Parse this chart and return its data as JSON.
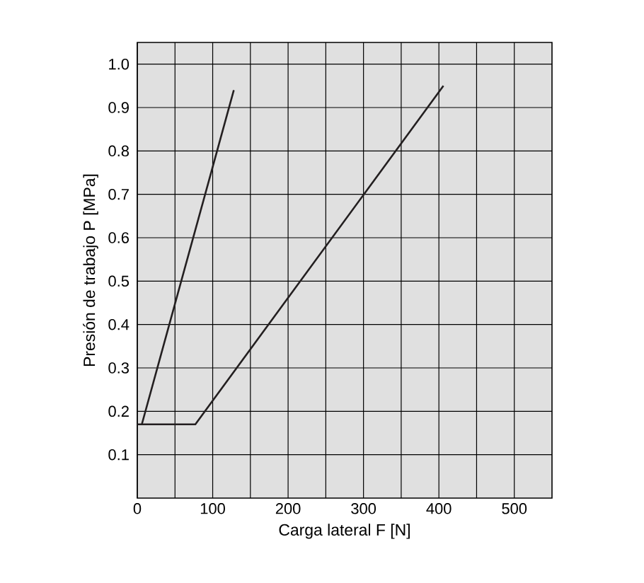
{
  "chart_data": {
    "type": "line",
    "xlabel": "Carga lateral F [N]",
    "ylabel": "Presión de trabajo  P [MPa]",
    "series": [
      {
        "color": "#231f20",
        "x": [
          6,
          128
        ],
        "values": [
          0.17,
          0.94
        ]
      },
      {
        "color": "#231f20",
        "x": [
          0,
          77,
          406
        ],
        "values": [
          0.17,
          0.17,
          0.95
        ]
      }
    ],
    "xlim": [
      0,
      550
    ],
    "ylim": [
      0,
      1.05
    ],
    "xticks": [
      0,
      {
        "value": 50,
        "label": null
      },
      100,
      {
        "value": 150,
        "label": null
      },
      200,
      {
        "value": 250,
        "label": null
      },
      300,
      {
        "value": 350,
        "label": null
      },
      400,
      {
        "value": 450,
        "label": null
      },
      500
    ],
    "yticks": [
      0.1,
      0.2,
      0.3,
      0.4,
      0.5,
      0.6,
      0.7,
      0.8,
      0.9,
      {
        "value": 1.0,
        "label": "1.0"
      }
    ],
    "grid": true,
    "marker": "none",
    "line_style": "solid"
  }
}
